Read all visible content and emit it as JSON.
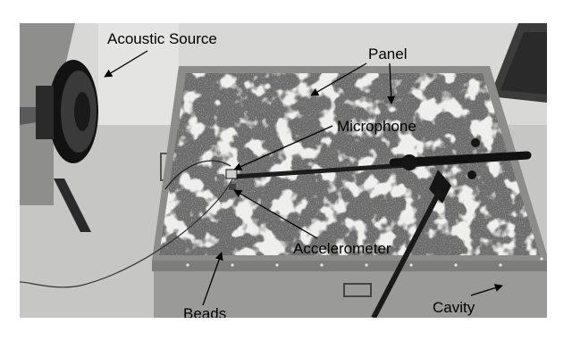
{
  "labels": {
    "acoustic_source": "Acoustic Source",
    "panel": "Panel",
    "microphone": "Microphone",
    "accelerometer": "Accelerometer",
    "beads": "Beads",
    "cavity": "Cavity"
  },
  "colors": {
    "background": "#ffffff",
    "floor": "#c9c9c7",
    "wall": "#d9d9d7",
    "panel_dark": "#6e6e6e",
    "beads": "#d6d6d2",
    "frame": "#8a8a88",
    "stand": "#1c1c1c",
    "speaker": "#121212",
    "arrow": "#000000"
  }
}
